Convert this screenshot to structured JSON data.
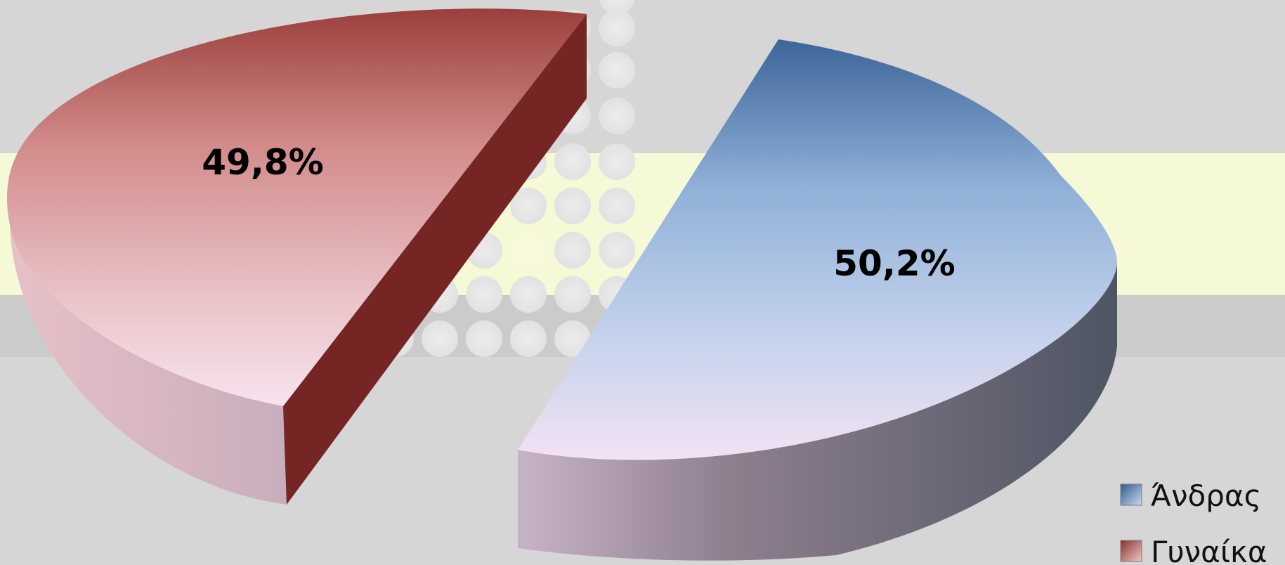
{
  "chart_data": {
    "type": "pie",
    "title": "",
    "legend": {
      "placement": "bottom-right"
    },
    "series": [
      {
        "name": "Άνδρας",
        "value": 50.2,
        "label": "50,2%",
        "color": "#5a7fb5"
      },
      {
        "name": "Γυναίκα",
        "value": 49.8,
        "label": "49,8%",
        "color": "#c06a6a"
      }
    ]
  }
}
